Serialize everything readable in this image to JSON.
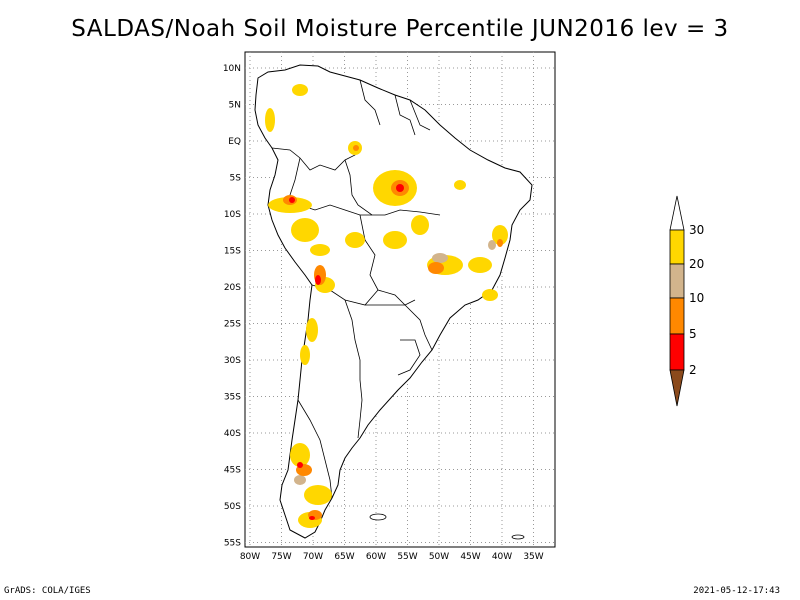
{
  "title": "SALDAS/Noah Soil Moisture Percentile JUN2016 lev = 3",
  "footer": {
    "credit": "GrADS: COLA/IGES",
    "timestamp": "2021-05-12-17:43"
  },
  "map": {
    "lat_ticks": [
      "10N",
      "5N",
      "EQ",
      "5S",
      "10S",
      "15S",
      "20S",
      "25S",
      "30S",
      "35S",
      "40S",
      "45S",
      "50S",
      "55S"
    ],
    "lon_ticks": [
      "80W",
      "75W",
      "70W",
      "65W",
      "60W",
      "55W",
      "50W",
      "45W",
      "40W",
      "35W"
    ],
    "lon_range": [
      -81,
      -33
    ],
    "lat_range": [
      -56,
      12
    ]
  },
  "legend": {
    "levels": [
      "2",
      "5",
      "10",
      "20",
      "30"
    ],
    "colors": {
      "below_2": "#8b4a1c",
      "2_5": "#ff0000",
      "5_10": "#ff8800",
      "10_20": "#d2b48c",
      "20_30": "#ffd700",
      "above_30": "#ffffff"
    }
  }
}
